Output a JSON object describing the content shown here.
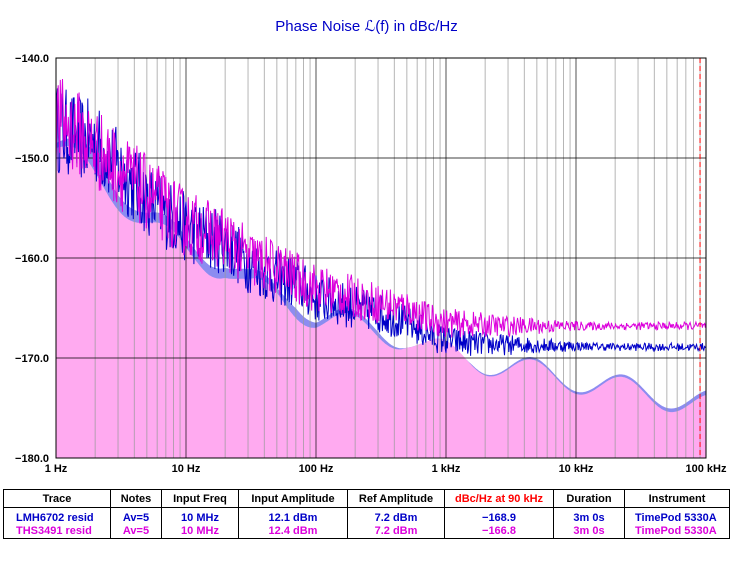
{
  "title": "Phase Noise ℒ(f) in dBc/Hz",
  "chart_data": {
    "type": "line",
    "x_scale": "log",
    "xlim": [
      1,
      100000
    ],
    "ylim": [
      -180,
      -140
    ],
    "x_tick_labels": [
      "1 Hz",
      "10 Hz",
      "100 Hz",
      "1 kHz",
      "10 kHz",
      "100 kHz"
    ],
    "y_tick_labels": [
      "−140.0",
      "−150.0",
      "−160.0",
      "−170.0",
      "−180.0"
    ],
    "grid": true,
    "marker_line_x": 90000,
    "series": [
      {
        "name": "LMH6702 resid",
        "color": "#0000c8",
        "fill_color": "#8c8cf0",
        "x": [
          1,
          1.5,
          2,
          3,
          5,
          7,
          10,
          15,
          20,
          30,
          50,
          70,
          100,
          150,
          200,
          300,
          500,
          700,
          1000,
          1500,
          2000,
          3000,
          5000,
          7000,
          10000,
          20000,
          50000,
          100000
        ],
        "y": [
          -147,
          -148,
          -148.5,
          -151,
          -154,
          -155.5,
          -157,
          -158,
          -158.5,
          -160.5,
          -162,
          -162.5,
          -164,
          -164.5,
          -165,
          -165.5,
          -166.5,
          -167.5,
          -168.3,
          -168.5,
          -168.6,
          -168.7,
          -168.7,
          -168.8,
          -168.8,
          -168.9,
          -168.9,
          -168.9
        ]
      },
      {
        "name": "THS3491 resid",
        "color": "#dc00dc",
        "fill_color": "#ffaaf0",
        "x": [
          1,
          1.5,
          2,
          3,
          5,
          7,
          10,
          15,
          20,
          30,
          50,
          70,
          100,
          150,
          200,
          300,
          500,
          700,
          1000,
          1500,
          2000,
          3000,
          5000,
          7000,
          10000,
          20000,
          50000,
          100000
        ],
        "y": [
          -146,
          -147.5,
          -149,
          -151,
          -153.5,
          -155,
          -156.5,
          -157.5,
          -158,
          -160,
          -161,
          -162,
          -163,
          -163.5,
          -164,
          -164.5,
          -165,
          -166,
          -166.5,
          -166.6,
          -166.7,
          -166.8,
          -166.8,
          -166.8,
          -166.8,
          -166.8,
          -166.8,
          -166.8
        ]
      }
    ]
  },
  "legend": {
    "headers": [
      "Trace",
      "Notes",
      "Input Freq",
      "Input Amplitude",
      "Ref Amplitude",
      "dBc/Hz at 90 kHz",
      "Duration",
      "Instrument"
    ],
    "header_colors": [
      "#000000",
      "#000000",
      "#000000",
      "#000000",
      "#000000",
      "#ff0000",
      "#000000",
      "#000000"
    ],
    "rows": [
      {
        "trace": "LMH6702 resid",
        "notes": "Av=5",
        "input_freq": "10 MHz",
        "input_amplitude": "12.1 dBm",
        "ref_amplitude": "7.2 dBm",
        "dbc_90k": "−168.9",
        "duration": "3m 0s",
        "instrument": "TimePod 5330A",
        "color": "#0000c8"
      },
      {
        "trace": "THS3491 resid",
        "notes": "Av=5",
        "input_freq": "10 MHz",
        "input_amplitude": "12.4 dBm",
        "ref_amplitude": "7.2 dBm",
        "dbc_90k": "−166.8",
        "duration": "3m 0s",
        "instrument": "TimePod 5330A",
        "color": "#dc00dc"
      }
    ]
  }
}
